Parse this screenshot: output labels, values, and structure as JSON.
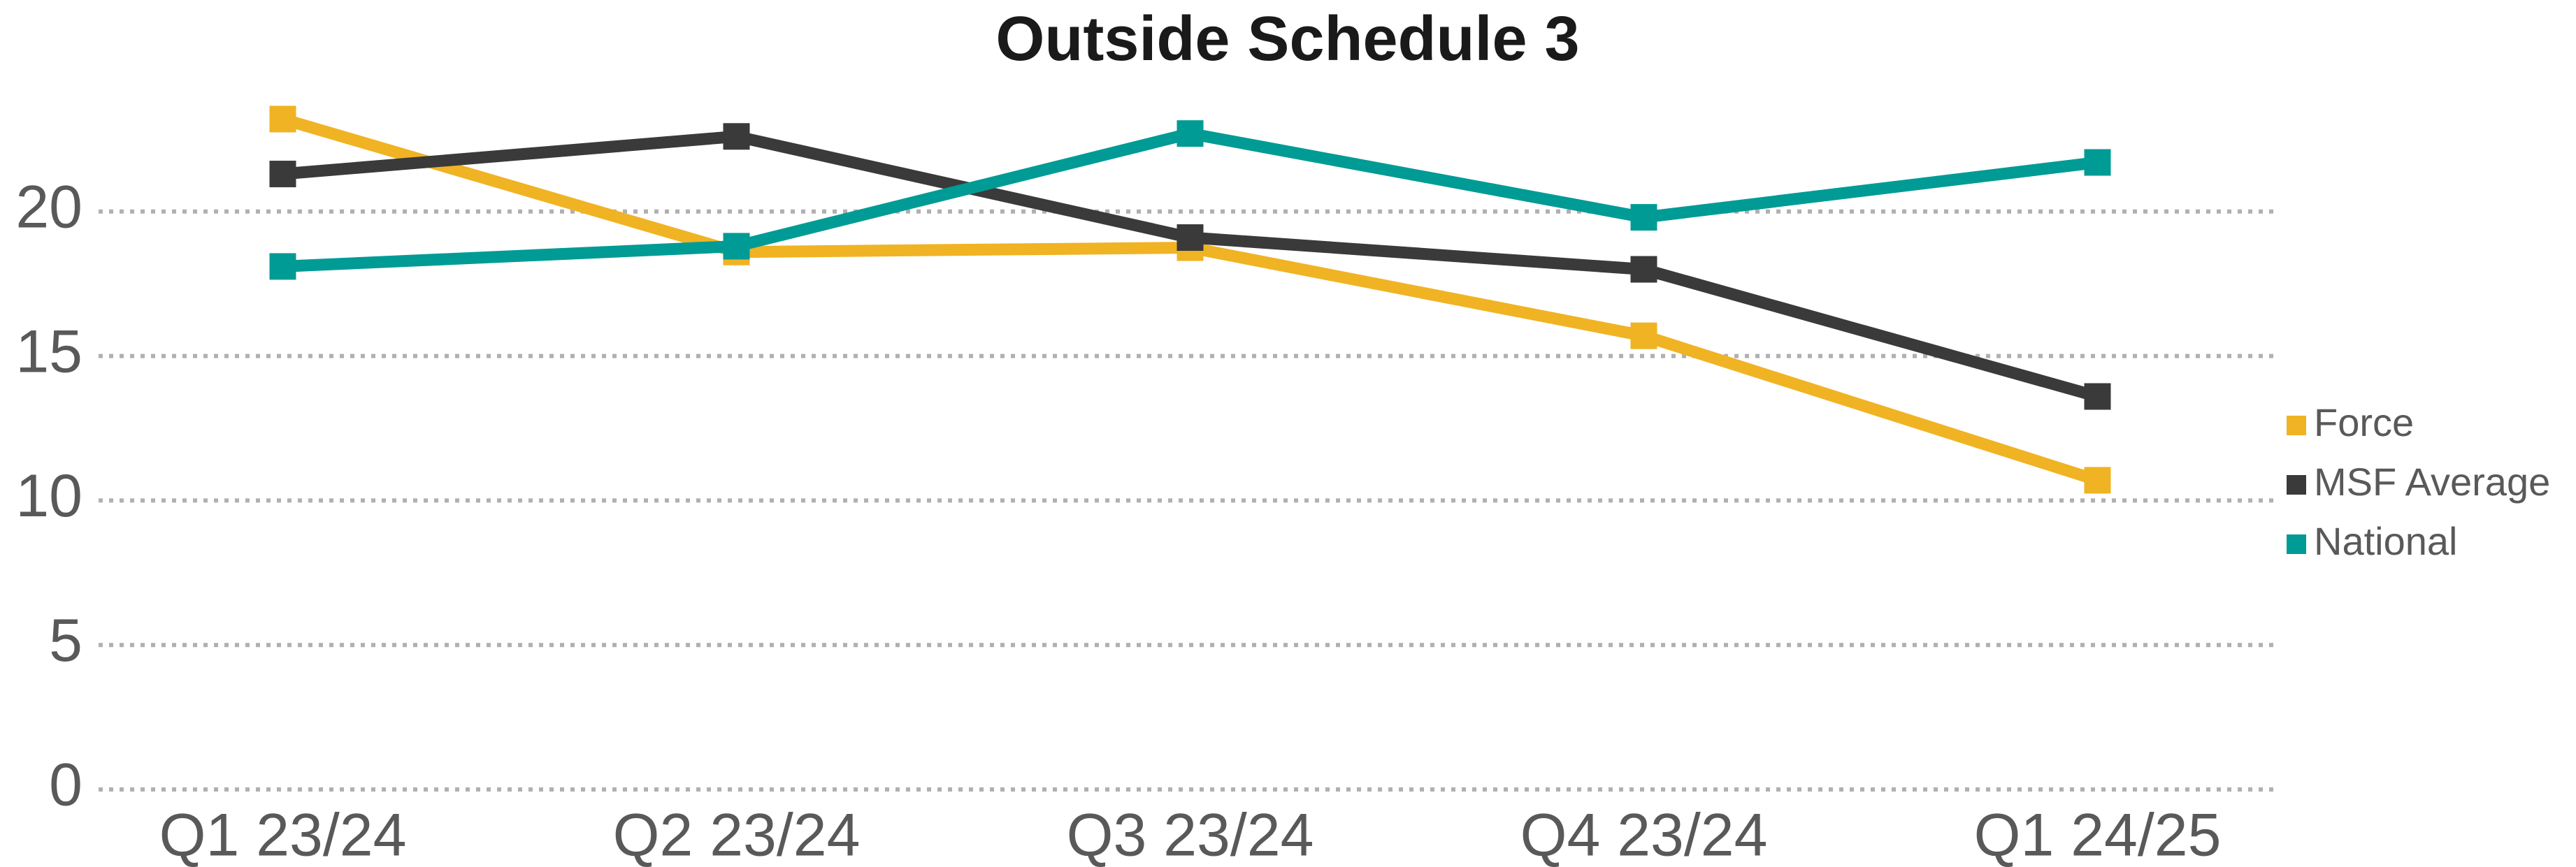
{
  "chart_data": {
    "type": "line",
    "title": "Outside Schedule 3",
    "categories": [
      "Q1 23/24",
      "Q2 23/24",
      "Q3 23/24",
      "Q4 23/24",
      "Q1 24/25"
    ],
    "series": [
      {
        "name": "Force",
        "color": "#f0b323",
        "values": [
          23.2,
          18.6,
          18.75,
          15.7,
          10.7
        ]
      },
      {
        "name": "MSF Average",
        "color": "#3a3a3a",
        "values": [
          21.3,
          22.6,
          19.1,
          18.0,
          13.6
        ]
      },
      {
        "name": "National",
        "color": "#009b95",
        "values": [
          18.1,
          18.8,
          22.7,
          19.8,
          21.7
        ]
      }
    ],
    "ylim": [
      0,
      25
    ],
    "yticks": [
      0,
      5,
      10,
      15,
      20
    ],
    "grid": true,
    "legend": "right"
  }
}
